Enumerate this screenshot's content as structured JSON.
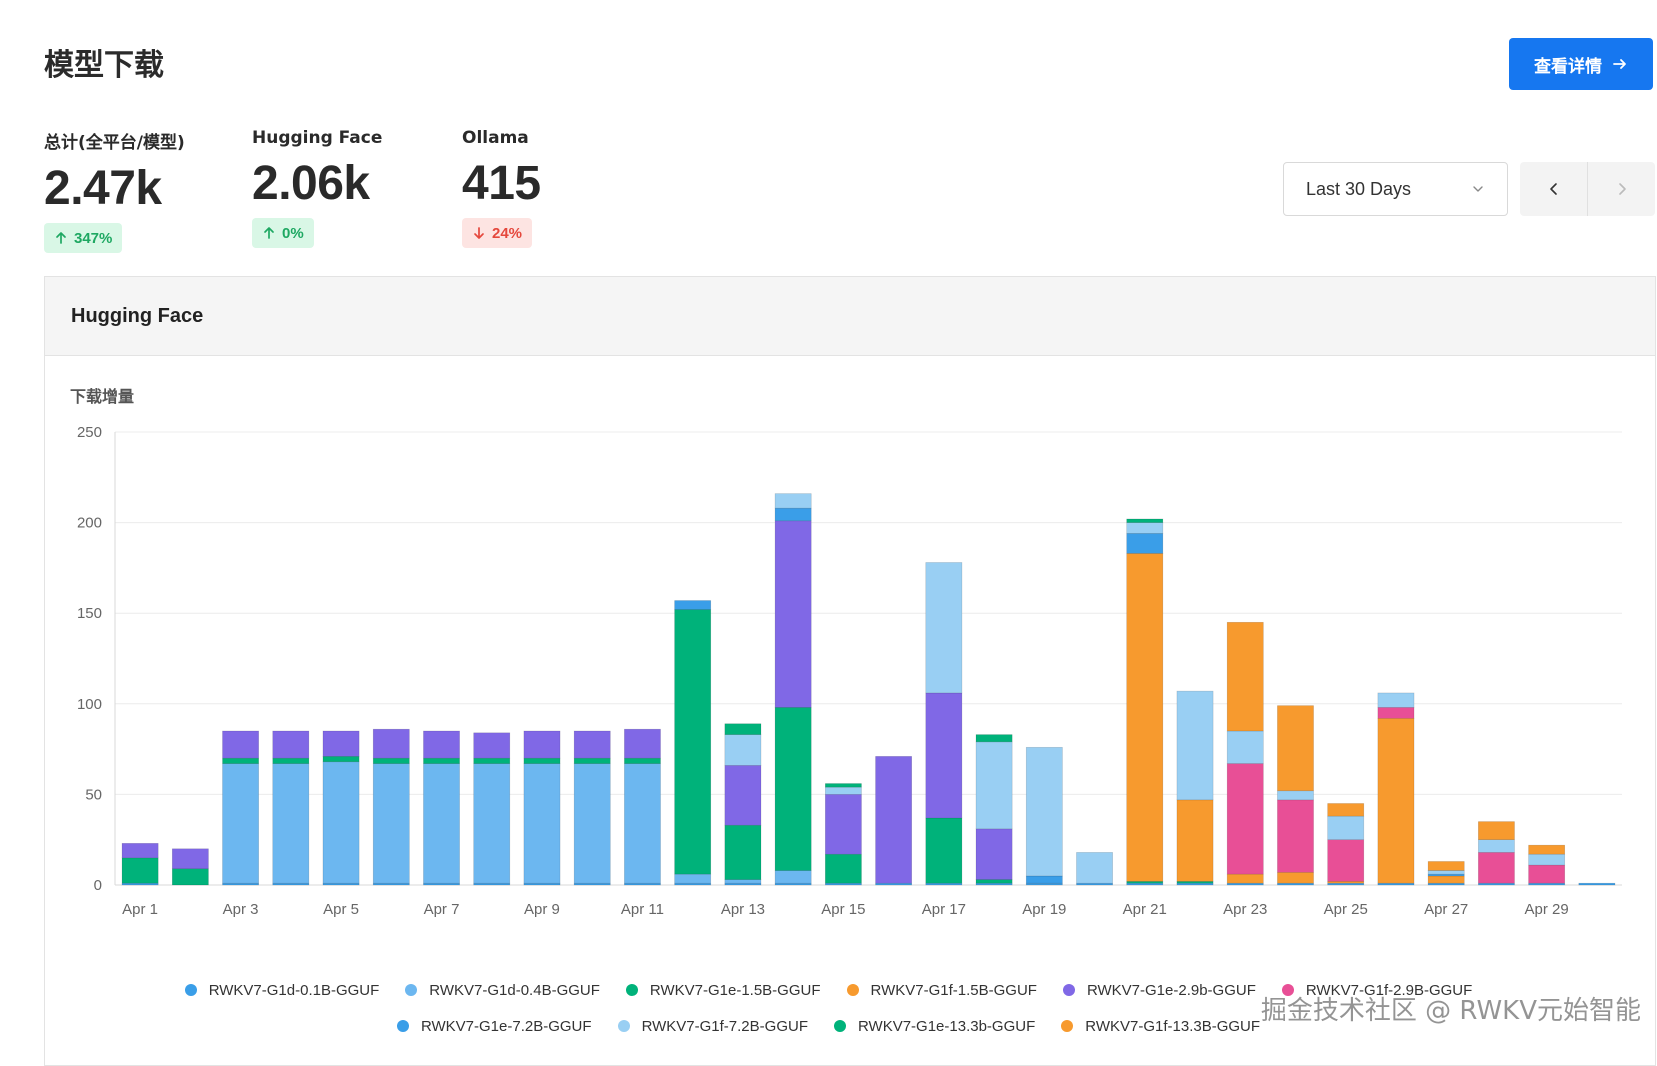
{
  "page": {
    "title": "模型下载",
    "details_button": "查看详情"
  },
  "stats": [
    {
      "label": "总计(全平台/模型)",
      "value": "2.47k",
      "change": "347%",
      "direction": "up"
    },
    {
      "label": "Hugging Face",
      "value": "2.06k",
      "change": "0%",
      "direction": "up"
    },
    {
      "label": "Ollama",
      "value": "415",
      "change": "24%",
      "direction": "down"
    }
  ],
  "controls": {
    "range_value": "Last 30 Days"
  },
  "card": {
    "title": "Hugging Face"
  },
  "watermark": "掘金技术社区 @ RWKV元始智能",
  "chart_data": {
    "type": "bar",
    "stacked": true,
    "title": "下载增量",
    "xlabel": "",
    "ylabel": "",
    "ylim": [
      0,
      250
    ],
    "yticks": [
      0,
      50,
      100,
      150,
      200,
      250
    ],
    "grid": true,
    "legend_position": "bottom",
    "categories": [
      "Apr 1",
      "Apr 2",
      "Apr 3",
      "Apr 4",
      "Apr 5",
      "Apr 6",
      "Apr 7",
      "Apr 8",
      "Apr 9",
      "Apr 10",
      "Apr 11",
      "Apr 12",
      "Apr 13",
      "Apr 14",
      "Apr 15",
      "Apr 16",
      "Apr 17",
      "Apr 18",
      "Apr 19",
      "Apr 20",
      "Apr 21",
      "Apr 22",
      "Apr 23",
      "Apr 24",
      "Apr 25",
      "Apr 26",
      "Apr 27",
      "Apr 28",
      "Apr 29",
      "Apr 30"
    ],
    "tick_labels": [
      "Apr 1",
      "Apr 3",
      "Apr 5",
      "Apr 7",
      "Apr 9",
      "Apr 11",
      "Apr 13",
      "Apr 15",
      "Apr 17",
      "Apr 19",
      "Apr 21",
      "Apr 23",
      "Apr 25",
      "Apr 27",
      "Apr 29"
    ],
    "series": [
      {
        "name": "RWKV7-G1d-0.1B-GGUF",
        "color": "#3a9ee8",
        "values": [
          1,
          0,
          1,
          1,
          1,
          1,
          1,
          1,
          1,
          1,
          1,
          1,
          1,
          1,
          1,
          1,
          1,
          1,
          1,
          1,
          1,
          1,
          1,
          1,
          1,
          1,
          1,
          1,
          1,
          1
        ]
      },
      {
        "name": "RWKV7-G1d-0.4B-GGUF",
        "color": "#6cb7f0",
        "values": [
          0,
          0,
          66,
          66,
          67,
          66,
          66,
          66,
          66,
          66,
          66,
          5,
          2,
          7,
          0,
          0,
          0,
          0,
          0,
          0,
          0,
          0,
          0,
          0,
          0,
          0,
          0,
          0,
          0,
          0
        ]
      },
      {
        "name": "RWKV7-G1e-1.5B-GGUF",
        "color": "#00b27a",
        "values": [
          14,
          9,
          3,
          3,
          3,
          3,
          3,
          3,
          3,
          3,
          3,
          146,
          30,
          90,
          16,
          0,
          36,
          2,
          0,
          0,
          1,
          1,
          0,
          0,
          0,
          0,
          0,
          0,
          0,
          0
        ]
      },
      {
        "name": "RWKV7-G1f-1.5B-GGUF",
        "color": "#f79a2e",
        "values": [
          0,
          0,
          0,
          0,
          0,
          0,
          0,
          0,
          0,
          0,
          0,
          0,
          0,
          0,
          0,
          0,
          0,
          0,
          0,
          0,
          181,
          45,
          5,
          6,
          1,
          91,
          4,
          0,
          0,
          0
        ]
      },
      {
        "name": "RWKV7-G1e-2.9b-GGUF",
        "color": "#8068e6",
        "values": [
          8,
          11,
          15,
          15,
          14,
          16,
          15,
          14,
          15,
          15,
          16,
          0,
          33,
          103,
          33,
          70,
          69,
          28,
          0,
          0,
          0,
          0,
          0,
          0,
          0,
          0,
          0,
          0,
          0,
          0
        ]
      },
      {
        "name": "RWKV7-G1f-2.9B-GGUF",
        "color": "#e84f96",
        "values": [
          0,
          0,
          0,
          0,
          0,
          0,
          0,
          0,
          0,
          0,
          0,
          0,
          0,
          0,
          0,
          0,
          0,
          0,
          0,
          0,
          0,
          0,
          61,
          40,
          23,
          6,
          0,
          17,
          10,
          0
        ]
      },
      {
        "name": "RWKV7-G1e-7.2B-GGUF",
        "color": "#3a9ee8",
        "values": [
          0,
          0,
          0,
          0,
          0,
          0,
          0,
          0,
          0,
          0,
          0,
          5,
          0,
          7,
          0,
          0,
          0,
          0,
          4,
          0,
          11,
          0,
          0,
          0,
          0,
          0,
          1,
          0,
          0,
          0
        ]
      },
      {
        "name": "RWKV7-G1f-7.2B-GGUF",
        "color": "#99cff3",
        "values": [
          0,
          0,
          0,
          0,
          0,
          0,
          0,
          0,
          0,
          0,
          0,
          0,
          17,
          8,
          4,
          0,
          72,
          48,
          71,
          17,
          6,
          60,
          18,
          5,
          13,
          8,
          2,
          7,
          6,
          0
        ]
      },
      {
        "name": "RWKV7-G1e-13.3b-GGUF",
        "color": "#00b27a",
        "values": [
          0,
          0,
          0,
          0,
          0,
          0,
          0,
          0,
          0,
          0,
          0,
          0,
          6,
          0,
          2,
          0,
          0,
          4,
          0,
          0,
          2,
          0,
          0,
          0,
          0,
          0,
          0,
          0,
          0,
          0
        ]
      },
      {
        "name": "RWKV7-G1f-13.3B-GGUF",
        "color": "#f79a2e",
        "values": [
          0,
          0,
          0,
          0,
          0,
          0,
          0,
          0,
          0,
          0,
          0,
          0,
          0,
          0,
          0,
          0,
          0,
          0,
          0,
          0,
          0,
          0,
          60,
          47,
          7,
          0,
          5,
          10,
          5,
          0
        ]
      }
    ]
  }
}
